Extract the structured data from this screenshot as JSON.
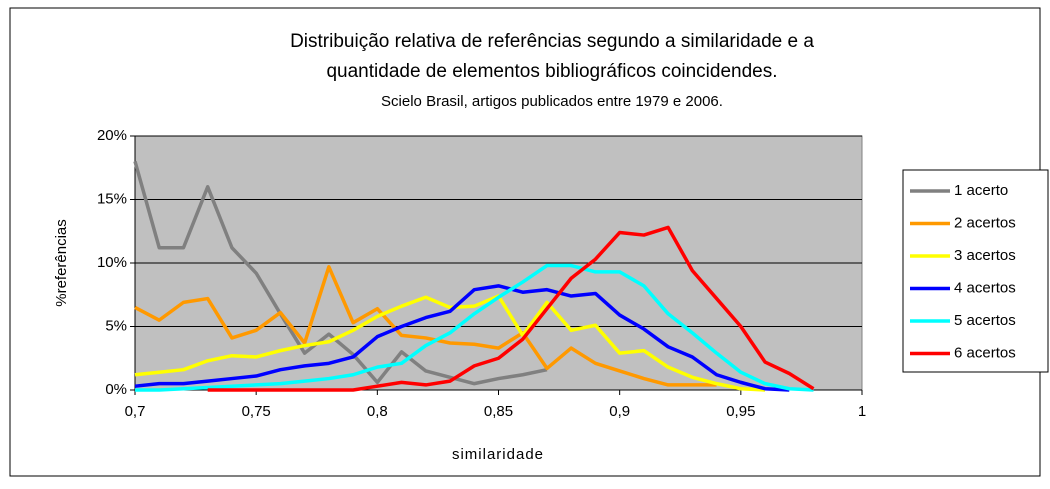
{
  "chart_data": {
    "type": "line",
    "title": "Distribuição relativa de referências segundo a similaridade e a",
    "title_line2": "quantidade de elementos bibliográficos coincidendes.",
    "subtitle": "Scielo Brasil, artigos publicados entre 1979 e 2006.",
    "x_label": "similaridade",
    "y_label": "%referências",
    "x": [
      0.7,
      0.71,
      0.72,
      0.73,
      0.74,
      0.75,
      0.76,
      0.77,
      0.78,
      0.79,
      0.8,
      0.81,
      0.82,
      0.83,
      0.84,
      0.85,
      0.86,
      0.87,
      0.88,
      0.89,
      0.9,
      0.91,
      0.92,
      0.93,
      0.94,
      0.95,
      0.96,
      0.97,
      0.98
    ],
    "xlim": [
      0.7,
      1
    ],
    "xticks": [
      {
        "value": 0.7,
        "label": "0,7"
      },
      {
        "value": 0.75,
        "label": "0,75"
      },
      {
        "value": 0.8,
        "label": "0,8"
      },
      {
        "value": 0.85,
        "label": "0,85"
      },
      {
        "value": 0.9,
        "label": "0,9"
      },
      {
        "value": 0.95,
        "label": "0,95"
      },
      1
    ],
    "ylim": [
      0,
      20
    ],
    "yticks": [
      {
        "value": 0,
        "label": "0%"
      },
      {
        "value": 5,
        "label": "5%"
      },
      {
        "value": 10,
        "label": "10%"
      },
      {
        "value": 15,
        "label": "15%"
      },
      {
        "value": 20,
        "label": "20%"
      }
    ],
    "grid": true,
    "legend": "right",
    "series": [
      {
        "name": "1 acerto",
        "color": "#808080",
        "values": [
          18,
          11.2,
          11.2,
          16,
          11.2,
          9.2,
          6,
          2.9,
          4.4,
          2.8,
          0.6,
          3,
          1.5,
          1,
          0.5,
          0.9,
          1.2,
          1.6,
          null,
          null,
          null,
          null,
          null,
          null,
          null,
          null,
          null,
          null,
          null
        ]
      },
      {
        "name": "2 acertos",
        "color": "#ff9900",
        "values": [
          6.5,
          5.5,
          6.9,
          7.2,
          4.1,
          4.7,
          6.1,
          3.7,
          9.7,
          5.3,
          6.4,
          4.3,
          4.1,
          3.7,
          3.6,
          3.3,
          4.5,
          1.7,
          3.3,
          2.1,
          1.5,
          0.9,
          0.4,
          0.4,
          0.4,
          null,
          null,
          null,
          null
        ]
      },
      {
        "name": "3 acertos",
        "color": "#ffff00",
        "values": [
          1.2,
          1.4,
          1.6,
          2.3,
          2.7,
          2.6,
          3.1,
          3.5,
          3.8,
          4.7,
          5.8,
          6.6,
          7.3,
          6.5,
          6.6,
          7.4,
          4.3,
          6.9,
          4.7,
          5.1,
          2.9,
          3.1,
          1.8,
          1.0,
          0.5,
          0.1,
          0,
          null,
          null
        ]
      },
      {
        "name": "4 acertos",
        "color": "#0000ff",
        "values": [
          0.3,
          0.5,
          0.5,
          0.7,
          0.9,
          1.1,
          1.6,
          1.9,
          2.1,
          2.6,
          4.2,
          5.0,
          5.7,
          6.2,
          7.9,
          8.2,
          7.7,
          7.9,
          7.4,
          7.6,
          5.9,
          4.8,
          3.4,
          2.6,
          1.2,
          0.6,
          0.1,
          0,
          null
        ]
      },
      {
        "name": "5 acertos",
        "color": "#00ffff",
        "values": [
          0,
          0,
          0.1,
          0.2,
          0.3,
          0.4,
          0.5,
          0.7,
          0.9,
          1.2,
          1.8,
          2.1,
          3.5,
          4.5,
          6.0,
          7.3,
          8.5,
          9.8,
          9.8,
          9.3,
          9.3,
          8.2,
          6.0,
          4.5,
          2.9,
          1.4,
          0.5,
          0.1,
          0
        ]
      },
      {
        "name": "6 acertos",
        "color": "#ff0000",
        "values": [
          null,
          null,
          null,
          0,
          0,
          0,
          0,
          0,
          0,
          0,
          0.3,
          0.6,
          0.4,
          0.7,
          1.9,
          2.5,
          4.0,
          6.4,
          8.8,
          10.3,
          12.4,
          12.2,
          12.8,
          9.4,
          7.2,
          5.0,
          2.2,
          1.3,
          0.1
        ]
      }
    ]
  }
}
